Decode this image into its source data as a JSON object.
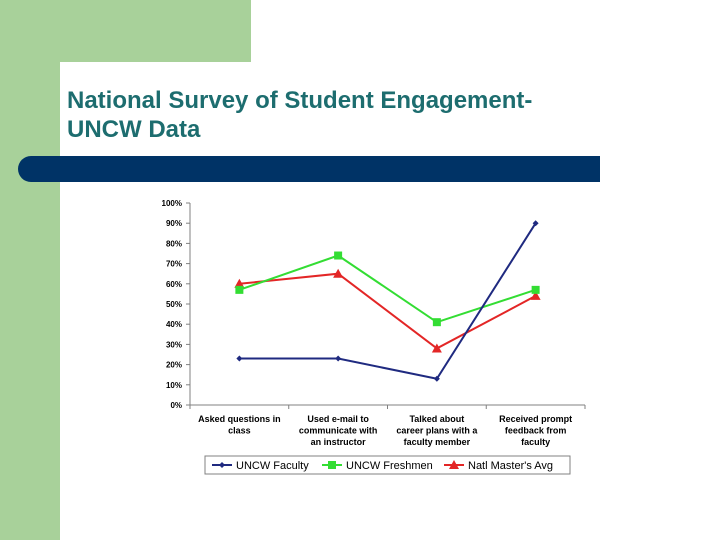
{
  "slide": {
    "title_line1": "National Survey of Student Engagement-",
    "title_line2": "UNCW Data"
  },
  "colors": {
    "green_accent": "#a8d19a",
    "navy_bar": "#003366",
    "title_text": "#1d6d6f"
  },
  "chart_data": {
    "type": "line",
    "title": "",
    "xlabel": "",
    "ylabel": "",
    "ylim": [
      0,
      100
    ],
    "y_ticks": [
      "0%",
      "10%",
      "20%",
      "30%",
      "40%",
      "50%",
      "60%",
      "70%",
      "80%",
      "90%",
      "100%"
    ],
    "categories": [
      [
        "Asked questions in",
        "class"
      ],
      [
        "Used e-mail to",
        "communicate with",
        "an instructor"
      ],
      [
        "Talked about",
        "career plans with a",
        "faculty member"
      ],
      [
        "Received prompt",
        "feedback from",
        "faculty"
      ]
    ],
    "series": [
      {
        "name": "UNCW Faculty",
        "color": "#1f2a80",
        "marker": "diamond",
        "values": [
          23,
          23,
          13,
          90
        ]
      },
      {
        "name": "UNCW Freshmen",
        "color": "#33dd33",
        "marker": "square",
        "values": [
          57,
          74,
          41,
          57
        ]
      },
      {
        "name": "Natl Master's Avg",
        "color": "#e32626",
        "marker": "triangle",
        "values": [
          60,
          65,
          28,
          54
        ]
      }
    ],
    "grid": false,
    "legend_position": "bottom"
  }
}
